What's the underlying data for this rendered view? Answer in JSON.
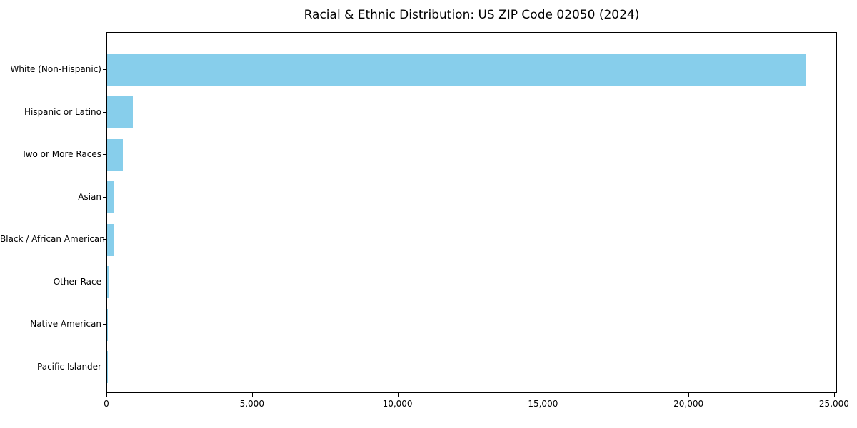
{
  "chart_data": {
    "type": "bar",
    "orientation": "horizontal",
    "title": "Racial & Ethnic Distribution: US ZIP Code 02050 (2024)",
    "categories": [
      "White (Non-Hispanic)",
      "Hispanic or Latino",
      "Two or More Races",
      "Asian",
      "Black / African American",
      "Other Race",
      "Native American",
      "Pacific Islander"
    ],
    "values": [
      24000,
      890,
      540,
      240,
      220,
      55,
      12,
      4
    ],
    "xlabel": "",
    "ylabel": "",
    "xlim": [
      0,
      25100
    ],
    "xticks": [
      0,
      5000,
      10000,
      15000,
      20000,
      25000
    ],
    "xtick_labels": [
      "0",
      "5,000",
      "10,000",
      "15,000",
      "20,000",
      "25,000"
    ],
    "bar_color": "#87CEEB",
    "axis_color": "#000000",
    "background_color": "#ffffff",
    "grid": false,
    "legend": null
  }
}
